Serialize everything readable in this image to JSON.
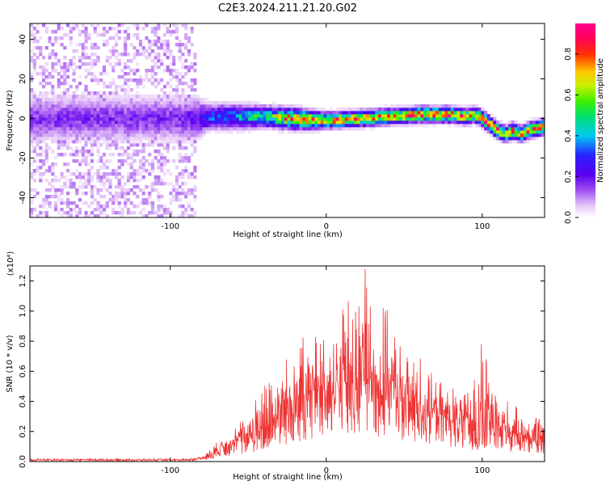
{
  "title": "C2E3.2024.211.21.20.G02",
  "colors": {
    "snr_line": "#ee3333",
    "axes": "#000000",
    "background": "#ffffff"
  },
  "chart_data": [
    {
      "type": "heatmap",
      "xlabel": "Height of straight line (km)",
      "ylabel": "Frequency (Hz)",
      "xlim": [
        -190,
        140
      ],
      "ylim": [
        -50,
        48
      ],
      "x_ticks": [
        -100,
        0,
        100
      ],
      "x_tick_labels": [
        "-100",
        "0",
        "100"
      ],
      "y_ticks": [
        -40,
        -20,
        0,
        20,
        40
      ],
      "y_tick_labels": [
        "-40",
        "-20",
        "0",
        "20",
        "40"
      ],
      "colorbar": {
        "label": "Normalized spectral amplitude",
        "range": [
          0,
          0.95
        ],
        "ticks": [
          0.0,
          0.2,
          0.4,
          0.6,
          0.8
        ],
        "tick_labels": [
          "0.0",
          "0.2",
          "0.4",
          "0.6",
          "0.8"
        ],
        "colormap": "rainbow (white-violet-blue-cyan-green-yellow-red-magenta)"
      },
      "ridge": {
        "x": [
          -190,
          -160,
          -130,
          -100,
          -85,
          -75,
          -60,
          -40,
          -20,
          0,
          20,
          40,
          60,
          80,
          90,
          95,
          100,
          105,
          110,
          115,
          120,
          125,
          130,
          135,
          140
        ],
        "y": [
          0,
          0,
          0,
          0,
          0,
          1,
          1,
          1,
          0,
          -1,
          0,
          1,
          2,
          2,
          1,
          2,
          0,
          -3,
          -6,
          -8,
          -6,
          -8,
          -6,
          -5,
          -4
        ],
        "peak_amplitude": [
          0.18,
          0.18,
          0.18,
          0.18,
          0.2,
          0.35,
          0.4,
          0.55,
          0.85,
          0.8,
          0.85,
          0.75,
          0.85,
          0.85,
          0.8,
          0.7,
          0.9,
          0.85,
          0.9,
          0.7,
          0.85,
          0.75,
          0.85,
          0.8,
          0.75
        ],
        "half_width_hz": [
          9,
          9,
          9,
          9,
          9,
          5,
          5,
          4,
          4,
          3,
          3,
          3,
          3,
          3,
          3,
          3,
          3,
          3,
          3,
          3,
          3,
          3,
          3,
          3,
          3
        ]
      },
      "noise_region": {
        "x_range": [
          -190,
          -83
        ],
        "level": 0.06
      }
    },
    {
      "type": "line",
      "xlabel": "Height of straight line (km)",
      "ylabel": "SNR (10 * v/v)",
      "y_multiplier": "(x10⁴)",
      "xlim": [
        -190,
        140
      ],
      "ylim": [
        0,
        1.3
      ],
      "x_ticks": [
        -100,
        0,
        100
      ],
      "x_tick_labels": [
        "-100",
        "0",
        "100"
      ],
      "y_ticks": [
        0.0,
        0.2,
        0.4,
        0.6,
        0.8,
        1.0,
        1.2
      ],
      "y_tick_labels": [
        "0.0",
        "0.2",
        "0.4",
        "0.6",
        "0.8",
        "1.0",
        "1.2"
      ],
      "envelope": {
        "x": [
          -190,
          -120,
          -90,
          -80,
          -75,
          -70,
          -60,
          -50,
          -40,
          -30,
          -20,
          -10,
          0,
          10,
          20,
          25,
          30,
          40,
          50,
          60,
          70,
          80,
          90,
          95,
          100,
          110,
          120,
          130,
          140
        ],
        "mean": [
          0.01,
          0.01,
          0.01,
          0.02,
          0.04,
          0.07,
          0.12,
          0.16,
          0.2,
          0.28,
          0.36,
          0.4,
          0.42,
          0.45,
          0.48,
          0.5,
          0.48,
          0.45,
          0.38,
          0.33,
          0.3,
          0.27,
          0.24,
          0.22,
          0.22,
          0.2,
          0.17,
          0.14,
          0.12
        ],
        "max": [
          0.02,
          0.02,
          0.02,
          0.04,
          0.08,
          0.13,
          0.22,
          0.32,
          0.55,
          0.62,
          0.82,
          0.85,
          0.8,
          1.05,
          1.2,
          1.28,
          1.1,
          1.0,
          0.7,
          0.72,
          0.55,
          0.5,
          0.45,
          0.65,
          0.85,
          0.45,
          0.38,
          0.32,
          0.3
        ]
      },
      "peak": {
        "x": 25,
        "y": 1.28
      }
    }
  ]
}
